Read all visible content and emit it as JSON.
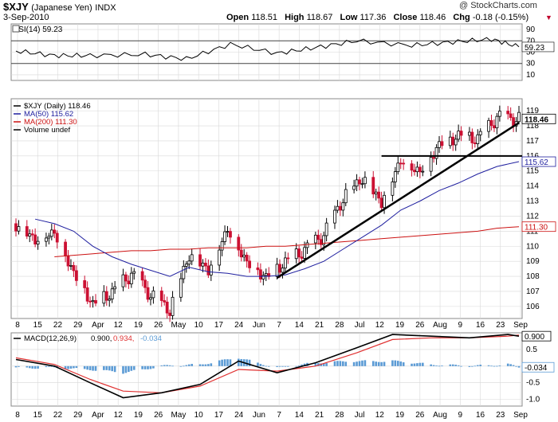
{
  "header": {
    "symbol": "$XJY",
    "name": "(Japanese Yen)",
    "exchange": "INDX",
    "date": "3-Sep-2010",
    "brand": "@ StockCharts.com",
    "quote": [
      {
        "label": "Open",
        "value": "118.51"
      },
      {
        "label": "High",
        "value": "118.67"
      },
      {
        "label": "Low",
        "value": "117.36"
      },
      {
        "label": "Close",
        "value": "118.46"
      },
      {
        "label": "Chg",
        "value": "-0.18 (-0.15%)"
      }
    ],
    "change_direction": "down"
  },
  "rsi_panel": {
    "legend": "RSI(14) 59.23",
    "ticks": [
      10,
      30,
      50,
      70,
      90
    ],
    "last_value_tag": "59.23"
  },
  "price_panel": {
    "legend": [
      {
        "text": "$XJY (Daily) 118.46",
        "color": "#000000"
      },
      {
        "text": "MA(50) 115.62",
        "color": "#1f1f9f"
      },
      {
        "text": "MA(200) 111.30",
        "color": "#cc1111"
      },
      {
        "text": "Volume undef",
        "color": "#000000"
      }
    ],
    "ticks": [
      106,
      107,
      108,
      109,
      110,
      111,
      112,
      113,
      114,
      115,
      116,
      117,
      118,
      119
    ],
    "tags": {
      "close": "118.46",
      "ma50": "115.62",
      "ma200": "111.30"
    }
  },
  "macd_panel": {
    "legend": {
      "prefix": "MACD(12,26,9)",
      "macd": "0.900",
      "signal": "0.934",
      "hist": "-0.034"
    },
    "ticks": [
      "0.5",
      "0.0",
      "-0.5",
      "-1.0"
    ],
    "tags": {
      "macd": "0.900",
      "hist": "-0.034"
    }
  },
  "x_axis": [
    "8",
    "15",
    "22",
    "29",
    "Apr",
    "12",
    "19",
    "26",
    "May",
    "10",
    "17",
    "24",
    "Jun",
    "7",
    "14",
    "21",
    "28",
    "Jul",
    "12",
    "19",
    "26",
    "Aug",
    "9",
    "16",
    "23",
    "Sep"
  ],
  "colors": {
    "up": "#000000",
    "down": "#cc1133",
    "ma50": "#1f1f9f",
    "ma200": "#cc1111",
    "hist": "#5b9bd5",
    "signal": "#e03030",
    "grid": "#d8d8d8",
    "rsi": "#000000",
    "trend": "#000000"
  },
  "chart_data": [
    {
      "type": "line",
      "title": "RSI(14)",
      "ylim": [
        0,
        100
      ],
      "reference_lines": [
        30,
        70
      ],
      "x": [
        "2010-03-04",
        "2010-03-18",
        "2010-03-31",
        "2010-04-20",
        "2010-05-05",
        "2010-05-21",
        "2010-06-07",
        "2010-06-21",
        "2010-07-06",
        "2010-07-26",
        "2010-08-10",
        "2010-08-24",
        "2010-09-03"
      ],
      "series": [
        {
          "name": "RSI(14)",
          "values": [
            52,
            44,
            44,
            46,
            38,
            64,
            48,
            58,
            70,
            62,
            68,
            73,
            59.23
          ]
        }
      ]
    },
    {
      "type": "candlestick",
      "title": "$XJY (Daily)",
      "ylim": [
        105.2,
        119.8
      ],
      "x": [
        "2010-03-04",
        "2010-03-11",
        "2010-03-18",
        "2010-03-25",
        "2010-04-01",
        "2010-04-08",
        "2010-04-15",
        "2010-04-22",
        "2010-04-29",
        "2010-05-06",
        "2010-05-13",
        "2010-05-20",
        "2010-05-27",
        "2010-06-03",
        "2010-06-10",
        "2010-06-17",
        "2010-06-24",
        "2010-07-01",
        "2010-07-08",
        "2010-07-15",
        "2010-07-22",
        "2010-07-29",
        "2010-08-05",
        "2010-08-12",
        "2010-08-19",
        "2010-08-26",
        "2010-09-03"
      ],
      "close": [
        111.5,
        110.5,
        111.0,
        108.3,
        106.2,
        107.0,
        108.2,
        106.8,
        105.8,
        109.5,
        108.5,
        111.2,
        109.0,
        108.0,
        109.0,
        109.8,
        110.8,
        113.2,
        114.6,
        113.0,
        115.8,
        115.0,
        116.8,
        117.4,
        117.2,
        118.6,
        118.46
      ],
      "ma50": [
        null,
        111.8,
        111.5,
        111.0,
        110.0,
        109.3,
        108.8,
        108.4,
        108.0,
        108.6,
        108.3,
        108.2,
        108.0,
        108.0,
        108.1,
        108.5,
        109.0,
        109.8,
        110.6,
        111.4,
        112.4,
        113.0,
        113.7,
        114.2,
        114.8,
        115.3,
        115.62
      ],
      "ma200": [
        null,
        null,
        109.3,
        109.4,
        109.5,
        109.6,
        109.7,
        109.7,
        109.8,
        109.8,
        109.9,
        109.9,
        109.9,
        110.0,
        110.0,
        110.1,
        110.2,
        110.3,
        110.4,
        110.5,
        110.6,
        110.7,
        110.8,
        110.9,
        111.0,
        111.2,
        111.3
      ],
      "horizontal_line": 116.0,
      "trendline": [
        [
          "2010-06-07",
          107.9
        ],
        [
          "2010-09-03",
          118.2
        ]
      ]
    },
    {
      "type": "line",
      "title": "MACD(12,26,9)",
      "ylim": [
        -1.2,
        1.0
      ],
      "x": [
        "2010-03-04",
        "2010-03-18",
        "2010-03-31",
        "2010-04-12",
        "2010-04-26",
        "2010-05-10",
        "2010-05-24",
        "2010-06-07",
        "2010-06-21",
        "2010-07-06",
        "2010-07-19",
        "2010-08-02",
        "2010-08-16",
        "2010-08-30",
        "2010-09-03"
      ],
      "series": [
        {
          "name": "MACD",
          "values": [
            0.2,
            0.0,
            -0.5,
            -0.95,
            -0.8,
            -0.55,
            0.15,
            -0.2,
            0.1,
            0.55,
            0.95,
            0.9,
            0.85,
            0.95,
            0.9
          ]
        },
        {
          "name": "Signal",
          "values": [
            0.25,
            0.05,
            -0.4,
            -0.75,
            -0.8,
            -0.6,
            -0.1,
            -0.15,
            0.0,
            0.4,
            0.8,
            0.85,
            0.85,
            0.9,
            0.934
          ]
        },
        {
          "name": "Histogram",
          "values": [
            -0.05,
            -0.05,
            -0.1,
            -0.2,
            0.0,
            0.05,
            0.25,
            -0.05,
            0.1,
            0.15,
            0.15,
            0.05,
            0.0,
            0.05,
            -0.034
          ]
        }
      ]
    }
  ]
}
